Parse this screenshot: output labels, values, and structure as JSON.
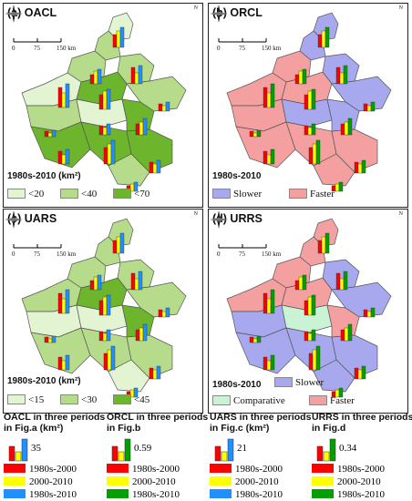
{
  "scale_labels": [
    "0",
    "75",
    "150 km"
  ],
  "north_label": "N",
  "colors": {
    "c1": "#ff0000",
    "c2": "#ffff00",
    "c3a": "#1e90ff",
    "c3b": "#00a000",
    "light_green": "#e2f4d2",
    "mid_green": "#b6dc8b",
    "dark_green": "#6cb52c",
    "slower": "#a8a8ee",
    "faster": "#f5a0a0",
    "comparative": "#c9f3d4"
  },
  "panels": [
    {
      "title": "(a) OACL",
      "period": "1980s-2010 (km²)",
      "legend": [
        "<20",
        "<40",
        "<70"
      ]
    },
    {
      "title": "(b) ORCL",
      "period": "1980s-2010",
      "legend": [
        "Slower",
        "Faster"
      ]
    },
    {
      "title": "(c) UARS",
      "period": "1980s-2010 (km²)",
      "legend": [
        "<15",
        "<30",
        "<45"
      ]
    },
    {
      "title": "(d) URRS",
      "period": "1980s-2010",
      "legend": [
        "Slower",
        "Comparative",
        "Faster"
      ]
    }
  ],
  "bottom_legend": [
    {
      "title": "OACL in three periods in Fig.a (km²)",
      "ref_value": "35",
      "items": [
        "1980s-2000",
        "2000-2010",
        "1980s-2010"
      ]
    },
    {
      "title": "ORCL in three periods in Fig.b",
      "ref_value": "0.59",
      "items": [
        "1980s-2000",
        "2000-2010",
        "1980s-2010"
      ]
    },
    {
      "title": "UARS in three periods in Fig.c (km²)",
      "ref_value": "21",
      "items": [
        "1980s-2000",
        "2000-2010",
        "1980s-2010"
      ]
    },
    {
      "title": "URRS in three periods in Fig.d",
      "ref_value": "0.34",
      "items": [
        "1980s-2000",
        "2000-2010",
        "1980s-2010"
      ]
    }
  ]
}
